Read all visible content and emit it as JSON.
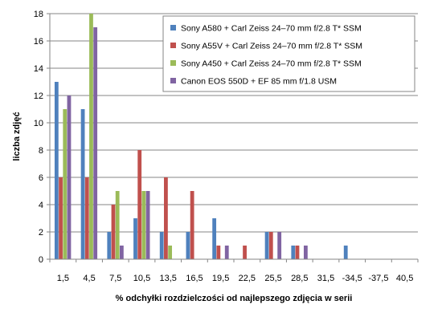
{
  "chart_data": {
    "type": "bar",
    "title": "",
    "xlabel": "% odchyłki rozdzielczości od najlepszego zdjęcia w serii",
    "ylabel": "liczba zdjęć",
    "ylim": [
      0,
      18
    ],
    "yticks": [
      0,
      2,
      4,
      6,
      8,
      10,
      12,
      14,
      16,
      18
    ],
    "grid": true,
    "legend_position": "top-right",
    "categories": [
      "1,5",
      "4,5",
      "7,5",
      "10,5",
      "13,5",
      "16,5",
      "19,5",
      "22,5",
      "25,5",
      "28,5",
      "31,5",
      "-34,5",
      "-37,5",
      "40,5"
    ],
    "series": [
      {
        "name": "Sony A580 + Carl Zeiss 24–70 mm f/2.8 T* SSM",
        "color": "#4f81bd",
        "values": [
          13,
          11,
          2,
          3,
          2,
          2,
          3,
          0,
          2,
          1,
          0,
          1,
          0,
          0
        ]
      },
      {
        "name": "Sony A55V + Carl Zeiss 24–70 mm f/2.8 T* SSM",
        "color": "#c0504d",
        "values": [
          6,
          6,
          4,
          8,
          6,
          5,
          1,
          1,
          2,
          1,
          0,
          0,
          0,
          0
        ]
      },
      {
        "name": "Sony A450 + Carl Zeiss 24–70 mm f/2.8 T* SSM",
        "color": "#9bbb59",
        "values": [
          11,
          18,
          5,
          5,
          1,
          0,
          0,
          0,
          0,
          0,
          0,
          0,
          0,
          0
        ]
      },
      {
        "name": "Canon EOS 550D + EF 85 mm f/1.8 USM",
        "color": "#8064a2",
        "values": [
          12,
          17,
          1,
          5,
          0,
          0,
          1,
          0,
          2,
          1,
          0,
          0,
          0,
          0
        ]
      }
    ]
  }
}
